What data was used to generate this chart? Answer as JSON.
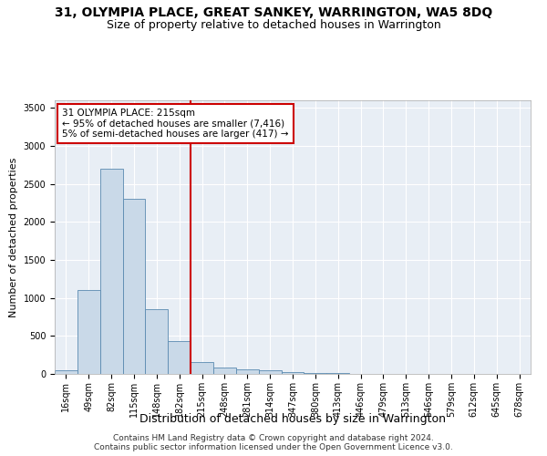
{
  "title": "31, OLYMPIA PLACE, GREAT SANKEY, WARRINGTON, WA5 8DQ",
  "subtitle": "Size of property relative to detached houses in Warrington",
  "xlabel": "Distribution of detached houses by size in Warrington",
  "ylabel": "Number of detached properties",
  "bar_color": "#c9d9e8",
  "bar_edge_color": "#5a8ab0",
  "vline_x_index": 6,
  "vline_color": "#cc0000",
  "annotation_text": "31 OLYMPIA PLACE: 215sqm\n← 95% of detached houses are smaller (7,416)\n5% of semi-detached houses are larger (417) →",
  "annotation_box_color": "#cc0000",
  "ylim": [
    0,
    3600
  ],
  "yticks": [
    0,
    500,
    1000,
    1500,
    2000,
    2500,
    3000,
    3500
  ],
  "categories": [
    "16sqm",
    "49sqm",
    "82sqm",
    "115sqm",
    "148sqm",
    "182sqm",
    "215sqm",
    "248sqm",
    "281sqm",
    "314sqm",
    "347sqm",
    "380sqm",
    "413sqm",
    "446sqm",
    "479sqm",
    "513sqm",
    "546sqm",
    "579sqm",
    "612sqm",
    "645sqm",
    "678sqm"
  ],
  "values": [
    50,
    1100,
    2700,
    2300,
    850,
    430,
    155,
    90,
    60,
    50,
    30,
    12,
    8,
    5,
    3,
    2,
    1,
    1,
    0,
    0,
    0
  ],
  "footer_line1": "Contains HM Land Registry data © Crown copyright and database right 2024.",
  "footer_line2": "Contains public sector information licensed under the Open Government Licence v3.0.",
  "bg_color": "#e8eef5",
  "fig_bg_color": "#ffffff",
  "grid_color": "#ffffff",
  "title_fontsize": 10,
  "subtitle_fontsize": 9,
  "xlabel_fontsize": 9,
  "ylabel_fontsize": 8,
  "tick_fontsize": 7,
  "footer_fontsize": 6.5,
  "annotation_fontsize": 7.5
}
